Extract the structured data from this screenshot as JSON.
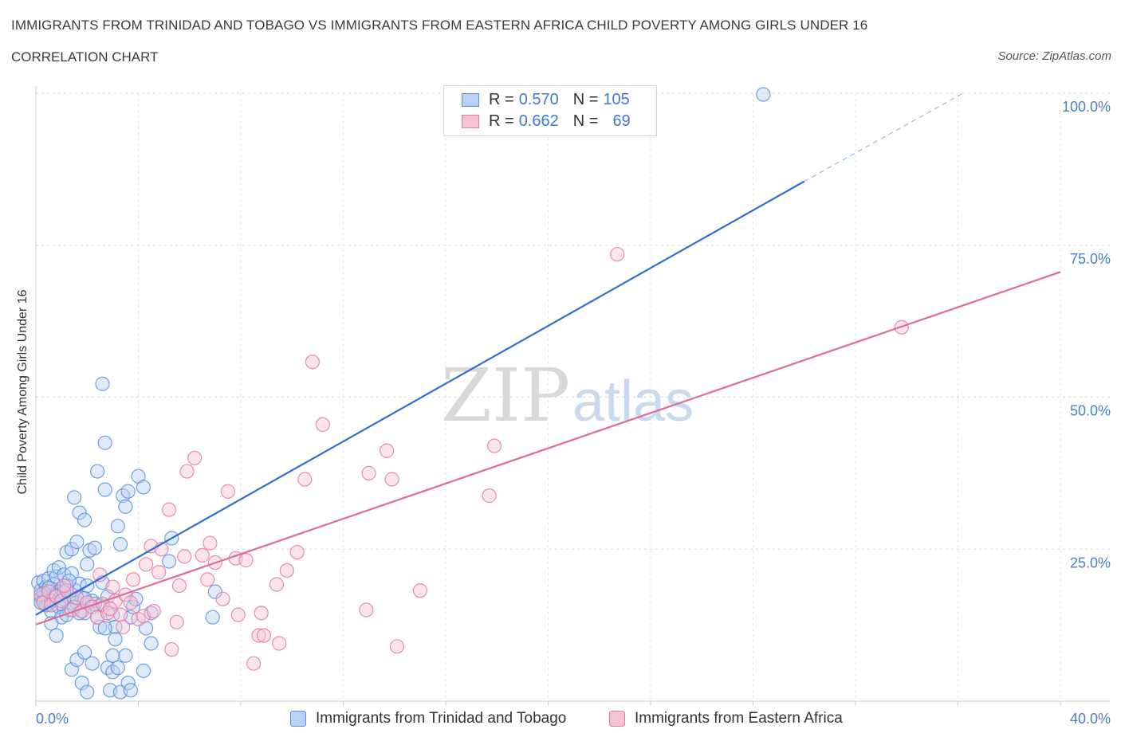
{
  "title": "IMMIGRANTS FROM TRINIDAD AND TOBAGO VS IMMIGRANTS FROM EASTERN AFRICA CHILD POVERTY AMONG GIRLS UNDER 16",
  "subtitle": "CORRELATION CHART",
  "source": "Source: ZipAtlas.com",
  "watermark": {
    "zip": "ZIP",
    "atlas": "atlas"
  },
  "legend": {
    "rows": [
      {
        "r_label": "R = ",
        "r_value": "0.570",
        "n_label": "N = ",
        "n_value": "105"
      },
      {
        "r_label": "R = ",
        "r_value": "0.662",
        "n_label": "N = ",
        "n_value": "69"
      }
    ]
  },
  "bottom_legend": [
    "Immigrants from Trinidad and Tobago",
    "Immigrants from Eastern Africa"
  ],
  "chart_data": {
    "type": "scatter",
    "title": "IMMIGRANTS FROM TRINIDAD AND TOBAGO VS IMMIGRANTS FROM EASTERN AFRICA CHILD POVERTY AMONG GIRLS UNDER 16",
    "xlabel": "",
    "ylabel": "Child Poverty Among Girls Under 16",
    "xlim": [
      0,
      40
    ],
    "ylim": [
      0,
      100
    ],
    "x_tick_labels": [
      "0.0%",
      "40.0%"
    ],
    "y_tick_labels": [
      "100.0%",
      "75.0%",
      "50.0%",
      "25.0%"
    ],
    "y_ticks": [
      100,
      75,
      50,
      25
    ],
    "colors": {
      "blue": "#5b8fd9",
      "blue_fill": "#b9d1f3",
      "pink": "#e37aa2",
      "pink_fill": "#f6c3d5",
      "blue_line": "#2e6fd2",
      "pink_line": "#e06a98"
    },
    "series": [
      {
        "name": "Immigrants from Trinidad and Tobago",
        "color": "blue",
        "trend": {
          "x0": 0,
          "y0": 14.2,
          "x1": 30,
          "y1": 85.5,
          "dashed_to_x": 36.2,
          "dashed_to_y": 100
        },
        "points": [
          [
            0.1,
            19.5
          ],
          [
            0.2,
            18.2
          ],
          [
            0.2,
            17.0
          ],
          [
            0.3,
            19.8
          ],
          [
            0.3,
            16.5
          ],
          [
            0.4,
            18.8
          ],
          [
            0.4,
            17.5
          ],
          [
            0.5,
            20.2
          ],
          [
            0.5,
            16.0
          ],
          [
            0.6,
            18.0
          ],
          [
            0.6,
            14.8
          ],
          [
            0.7,
            19.2
          ],
          [
            0.7,
            21.5
          ],
          [
            0.8,
            17.8
          ],
          [
            0.8,
            20.5
          ],
          [
            0.9,
            15.5
          ],
          [
            0.9,
            22.0
          ],
          [
            1.0,
            18.5
          ],
          [
            1.0,
            13.8
          ],
          [
            1.1,
            16.8
          ],
          [
            1.1,
            20.8
          ],
          [
            1.2,
            19.0
          ],
          [
            1.2,
            24.5
          ],
          [
            1.3,
            17.2
          ],
          [
            1.3,
            15.0
          ],
          [
            1.4,
            25.0
          ],
          [
            1.4,
            21.0
          ],
          [
            1.5,
            18.3
          ],
          [
            1.5,
            33.5
          ],
          [
            1.6,
            26.2
          ],
          [
            1.6,
            16.2
          ],
          [
            1.7,
            19.3
          ],
          [
            1.7,
            31.0
          ],
          [
            1.8,
            17.0
          ],
          [
            1.9,
            14.5
          ],
          [
            1.9,
            29.8
          ],
          [
            2.0,
            22.5
          ],
          [
            2.0,
            19.0
          ],
          [
            2.1,
            24.8
          ],
          [
            2.2,
            16.5
          ],
          [
            2.3,
            25.2
          ],
          [
            2.4,
            13.8
          ],
          [
            2.4,
            37.8
          ],
          [
            2.5,
            15.8
          ],
          [
            2.6,
            19.5
          ],
          [
            2.6,
            52.2
          ],
          [
            2.7,
            34.8
          ],
          [
            2.7,
            42.5
          ],
          [
            2.8,
            17.2
          ],
          [
            3.0,
            14.2
          ],
          [
            3.1,
            12.2
          ],
          [
            3.2,
            28.8
          ],
          [
            3.3,
            25.8
          ],
          [
            3.4,
            33.8
          ],
          [
            3.5,
            32.0
          ],
          [
            3.6,
            34.5
          ],
          [
            3.7,
            13.8
          ],
          [
            3.8,
            15.5
          ],
          [
            3.9,
            16.8
          ],
          [
            4.0,
            37.0
          ],
          [
            4.2,
            35.2
          ],
          [
            4.3,
            12.0
          ],
          [
            4.5,
            9.5
          ],
          [
            4.5,
            14.5
          ],
          [
            5.3,
            26.8
          ],
          [
            5.2,
            23.0
          ],
          [
            6.9,
            13.8
          ],
          [
            7.0,
            18.0
          ],
          [
            0.6,
            12.8
          ],
          [
            0.8,
            10.8
          ],
          [
            1.4,
            5.2
          ],
          [
            1.6,
            6.8
          ],
          [
            1.8,
            3.0
          ],
          [
            1.9,
            8.0
          ],
          [
            2.0,
            1.5
          ],
          [
            2.2,
            6.2
          ],
          [
            2.5,
            12.2
          ],
          [
            2.8,
            5.5
          ],
          [
            2.9,
            1.8
          ],
          [
            3.0,
            4.8
          ],
          [
            3.0,
            7.5
          ],
          [
            3.2,
            5.5
          ],
          [
            3.3,
            1.5
          ],
          [
            3.5,
            7.5
          ],
          [
            3.6,
            3.0
          ],
          [
            3.7,
            1.8
          ],
          [
            4.2,
            5.0
          ],
          [
            2.7,
            12.0
          ],
          [
            3.1,
            10.2
          ],
          [
            1.2,
            14.2
          ],
          [
            1.0,
            16.0
          ],
          [
            0.4,
            15.8
          ],
          [
            0.3,
            17.8
          ],
          [
            0.9,
            18.0
          ],
          [
            1.5,
            15.5
          ],
          [
            2.3,
            16.0
          ],
          [
            1.7,
            14.5
          ],
          [
            0.6,
            16.5
          ],
          [
            28.4,
            99.8
          ],
          [
            1.3,
            19.8
          ],
          [
            0.2,
            16.2
          ],
          [
            0.5,
            18.6
          ],
          [
            0.8,
            17.4
          ],
          [
            1.1,
            17.9
          ],
          [
            1.9,
            16.9
          ]
        ]
      },
      {
        "name": "Immigrants from Eastern Africa",
        "color": "pink",
        "trend": {
          "x0": 0,
          "y0": 12.6,
          "x1": 40,
          "y1": 70.6
        },
        "points": [
          [
            0.2,
            17.5
          ],
          [
            0.3,
            16.2
          ],
          [
            0.5,
            18.0
          ],
          [
            0.6,
            15.8
          ],
          [
            0.8,
            17.2
          ],
          [
            1.0,
            16.5
          ],
          [
            1.2,
            18.2
          ],
          [
            1.4,
            15.0
          ],
          [
            1.6,
            17.0
          ],
          [
            1.8,
            14.8
          ],
          [
            2.0,
            16.2
          ],
          [
            2.2,
            15.5
          ],
          [
            2.4,
            13.8
          ],
          [
            2.5,
            20.8
          ],
          [
            2.6,
            16.0
          ],
          [
            2.8,
            14.5
          ],
          [
            3.0,
            18.8
          ],
          [
            3.1,
            16.5
          ],
          [
            3.3,
            14.2
          ],
          [
            3.4,
            12.2
          ],
          [
            3.5,
            17.5
          ],
          [
            3.7,
            16.2
          ],
          [
            3.8,
            20.0
          ],
          [
            4.0,
            13.5
          ],
          [
            4.2,
            14.0
          ],
          [
            4.3,
            22.5
          ],
          [
            4.5,
            25.5
          ],
          [
            4.6,
            14.8
          ],
          [
            4.8,
            21.2
          ],
          [
            4.9,
            25.0
          ],
          [
            5.2,
            31.5
          ],
          [
            5.3,
            8.5
          ],
          [
            5.5,
            13.0
          ],
          [
            5.6,
            19.0
          ],
          [
            5.8,
            23.8
          ],
          [
            5.9,
            37.8
          ],
          [
            6.2,
            40.0
          ],
          [
            6.5,
            24.0
          ],
          [
            6.7,
            20.0
          ],
          [
            6.8,
            26.0
          ],
          [
            7.0,
            22.8
          ],
          [
            7.3,
            16.8
          ],
          [
            7.5,
            34.5
          ],
          [
            7.8,
            23.5
          ],
          [
            7.9,
            14.2
          ],
          [
            8.2,
            23.2
          ],
          [
            8.5,
            6.2
          ],
          [
            8.7,
            10.8
          ],
          [
            8.8,
            14.5
          ],
          [
            8.9,
            10.8
          ],
          [
            9.4,
            19.2
          ],
          [
            9.5,
            9.5
          ],
          [
            9.8,
            21.5
          ],
          [
            10.2,
            24.5
          ],
          [
            10.5,
            36.5
          ],
          [
            10.8,
            55.8
          ],
          [
            11.2,
            45.5
          ],
          [
            12.9,
            15.0
          ],
          [
            13.0,
            37.5
          ],
          [
            13.7,
            41.2
          ],
          [
            13.9,
            36.5
          ],
          [
            14.1,
            9.0
          ],
          [
            15.0,
            18.2
          ],
          [
            17.7,
            33.8
          ],
          [
            17.9,
            42.0
          ],
          [
            22.7,
            73.5
          ],
          [
            33.8,
            61.5
          ],
          [
            1.1,
            19.0
          ],
          [
            2.9,
            15.2
          ]
        ]
      }
    ]
  }
}
